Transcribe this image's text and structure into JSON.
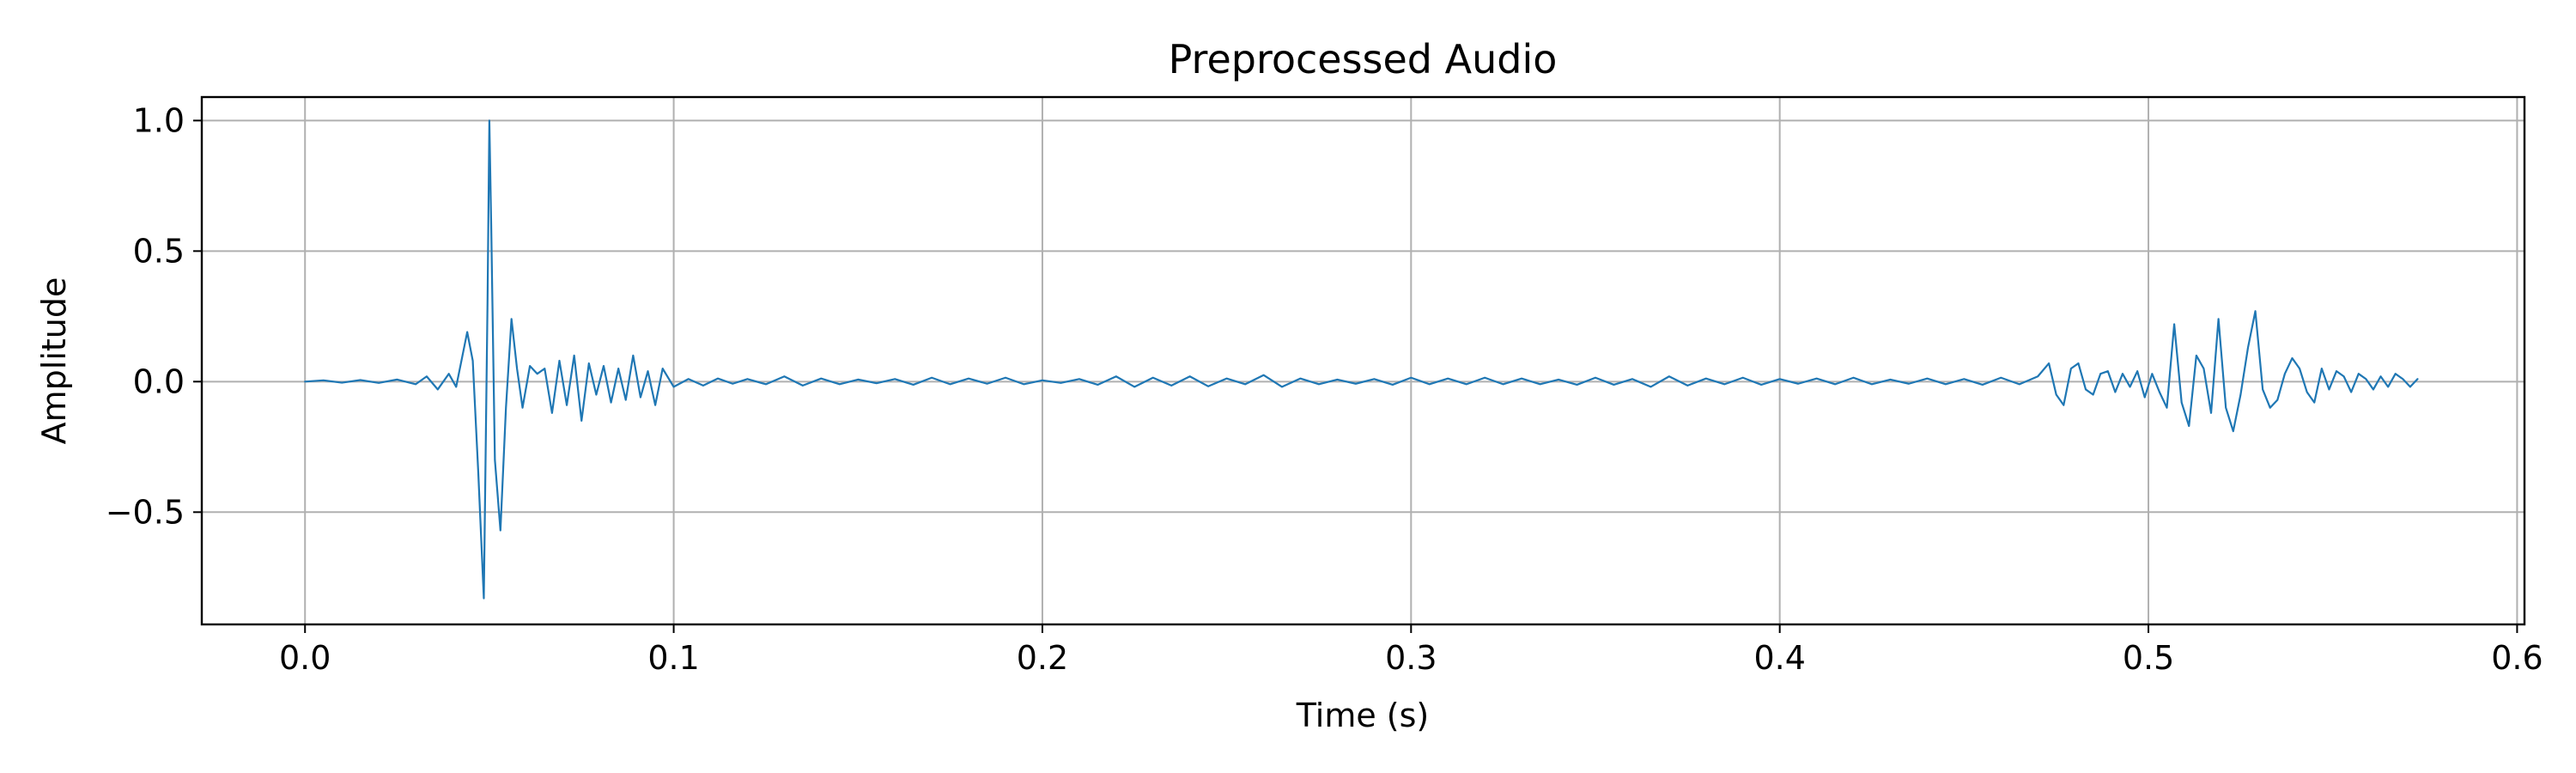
{
  "chart_data": {
    "type": "line",
    "title": "Preprocessed Audio",
    "xlabel": "Time (s)",
    "ylabel": "Amplitude",
    "xlim": [
      -0.028,
      0.602
    ],
    "ylim": [
      -0.93,
      1.09
    ],
    "xticks": [
      0.0,
      0.1,
      0.2,
      0.3,
      0.4,
      0.5,
      0.6
    ],
    "xtick_labels": [
      "0.0",
      "0.1",
      "0.2",
      "0.3",
      "0.4",
      "0.5",
      "0.6"
    ],
    "yticks": [
      -0.5,
      0.0,
      0.5,
      1.0
    ],
    "ytick_labels": [
      "−0.5",
      "0.0",
      "0.5",
      "1.0"
    ],
    "grid": true,
    "line_color": "#1f77b4",
    "series": [
      {
        "x": [
          0.0,
          0.005,
          0.01,
          0.015,
          0.02,
          0.025,
          0.03,
          0.033,
          0.036,
          0.039,
          0.041,
          0.043,
          0.044,
          0.0455,
          0.047,
          0.0485,
          0.0495,
          0.05,
          0.0505,
          0.0515,
          0.053,
          0.0545,
          0.056,
          0.0575,
          0.059,
          0.061,
          0.063,
          0.065,
          0.067,
          0.069,
          0.071,
          0.073,
          0.075,
          0.077,
          0.079,
          0.081,
          0.083,
          0.085,
          0.087,
          0.089,
          0.091,
          0.093,
          0.095,
          0.097,
          0.1,
          0.104,
          0.108,
          0.112,
          0.116,
          0.12,
          0.125,
          0.13,
          0.135,
          0.14,
          0.145,
          0.15,
          0.155,
          0.16,
          0.165,
          0.17,
          0.175,
          0.18,
          0.185,
          0.19,
          0.195,
          0.2,
          0.205,
          0.21,
          0.215,
          0.22,
          0.225,
          0.23,
          0.235,
          0.24,
          0.245,
          0.25,
          0.255,
          0.26,
          0.265,
          0.27,
          0.275,
          0.28,
          0.285,
          0.29,
          0.295,
          0.3,
          0.305,
          0.31,
          0.315,
          0.32,
          0.325,
          0.33,
          0.335,
          0.34,
          0.345,
          0.35,
          0.355,
          0.36,
          0.365,
          0.37,
          0.375,
          0.38,
          0.385,
          0.39,
          0.395,
          0.4,
          0.405,
          0.41,
          0.415,
          0.42,
          0.425,
          0.43,
          0.435,
          0.44,
          0.445,
          0.45,
          0.455,
          0.46,
          0.465,
          0.47,
          0.473,
          0.475,
          0.477,
          0.479,
          0.481,
          0.483,
          0.485,
          0.487,
          0.489,
          0.491,
          0.493,
          0.495,
          0.497,
          0.499,
          0.501,
          0.503,
          0.505,
          0.507,
          0.509,
          0.511,
          0.513,
          0.515,
          0.517,
          0.519,
          0.521,
          0.523,
          0.525,
          0.527,
          0.529,
          0.531,
          0.533,
          0.535,
          0.537,
          0.539,
          0.541,
          0.543,
          0.545,
          0.547,
          0.549,
          0.551,
          0.553,
          0.555,
          0.557,
          0.559,
          0.561,
          0.563,
          0.565,
          0.567,
          0.569,
          0.571,
          0.573
        ],
        "values": [
          0.0,
          0.005,
          -0.004,
          0.006,
          -0.005,
          0.008,
          -0.01,
          0.02,
          -0.03,
          0.03,
          -0.02,
          0.12,
          0.19,
          0.08,
          -0.35,
          -0.83,
          0.3,
          1.0,
          0.6,
          -0.3,
          -0.57,
          -0.1,
          0.24,
          0.05,
          -0.1,
          0.06,
          0.03,
          0.05,
          -0.12,
          0.08,
          -0.09,
          0.1,
          -0.15,
          0.07,
          -0.05,
          0.06,
          -0.08,
          0.05,
          -0.07,
          0.1,
          -0.06,
          0.04,
          -0.09,
          0.05,
          -0.02,
          0.01,
          -0.015,
          0.012,
          -0.008,
          0.01,
          -0.01,
          0.02,
          -0.015,
          0.012,
          -0.01,
          0.008,
          -0.006,
          0.01,
          -0.012,
          0.015,
          -0.01,
          0.012,
          -0.008,
          0.015,
          -0.01,
          0.005,
          -0.005,
          0.01,
          -0.012,
          0.02,
          -0.02,
          0.015,
          -0.015,
          0.02,
          -0.018,
          0.012,
          -0.01,
          0.025,
          -0.02,
          0.012,
          -0.01,
          0.008,
          -0.008,
          0.01,
          -0.012,
          0.015,
          -0.01,
          0.012,
          -0.01,
          0.015,
          -0.01,
          0.012,
          -0.01,
          0.008,
          -0.012,
          0.015,
          -0.012,
          0.01,
          -0.02,
          0.02,
          -0.015,
          0.012,
          -0.01,
          0.015,
          -0.012,
          0.01,
          -0.008,
          0.012,
          -0.01,
          0.015,
          -0.01,
          0.008,
          -0.008,
          0.012,
          -0.01,
          0.01,
          -0.012,
          0.015,
          -0.01,
          0.02,
          0.07,
          -0.05,
          -0.09,
          0.05,
          0.07,
          -0.03,
          -0.05,
          0.03,
          0.04,
          -0.04,
          0.03,
          -0.02,
          0.04,
          -0.06,
          0.03,
          -0.04,
          -0.1,
          0.22,
          -0.08,
          -0.17,
          0.1,
          0.05,
          -0.12,
          0.24,
          -0.1,
          -0.19,
          -0.05,
          0.13,
          0.27,
          -0.03,
          -0.1,
          -0.07,
          0.03,
          0.09,
          0.05,
          -0.04,
          -0.08,
          0.05,
          -0.03,
          0.04,
          0.02,
          -0.04,
          0.03,
          0.01,
          -0.03,
          0.02,
          -0.02,
          0.03,
          0.01,
          -0.02,
          0.01
        ]
      }
    ]
  }
}
